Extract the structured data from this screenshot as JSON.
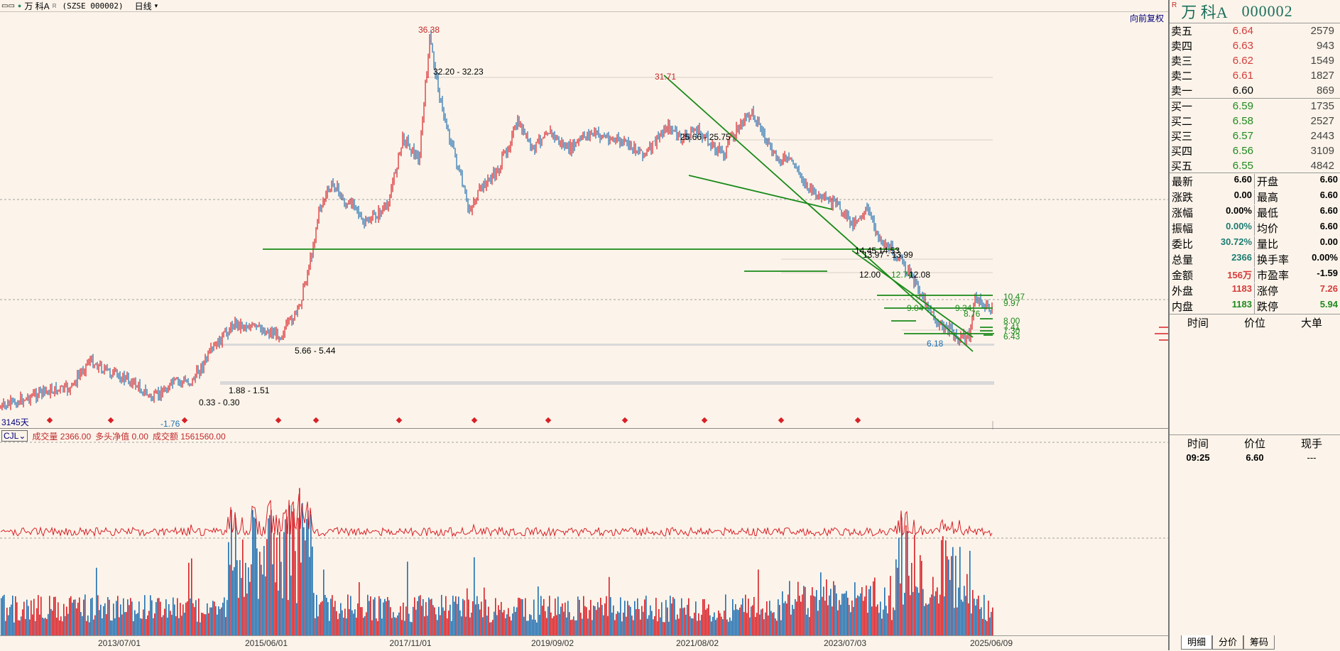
{
  "topbar": {
    "name": "万 科A",
    "mark": "R",
    "code": "(SZSE 000002)",
    "period": "日线",
    "fq_button": "向前复权"
  },
  "chart_main": {
    "days_label": "3145天",
    "annotations": {
      "high": "36.38",
      "high_zone": "32.20 - 32.23",
      "peak2": "31.71",
      "zone_25": "25.66 - 25.75",
      "zone_14a": "14.45",
      "zone_14b": "14.53",
      "zone_13": "13.97 - 13.99",
      "zone_12a": "12.00",
      "zone_12b": "12.08",
      "zone_12c": "12.74",
      "lvl_1047": "10.47",
      "lvl_997": "9.97",
      "lvl_934": "9.34",
      "lvl_904": "9.04",
      "lvl_876": "8.76",
      "lvl_800": "8.00",
      "lvl_741": "7.41",
      "lvl_730": "7.30",
      "lvl_643": "6.43",
      "low_recent": "6.18",
      "zone_566": "5.66 - 5.44",
      "zone_188": "1.88 - 1.51",
      "zone_033": "0.33 - 0.30",
      "low_all": "-1.76"
    }
  },
  "chart_volume": {
    "indicator": "CJL",
    "vol_label": "成交量",
    "vol_value": "2366.00",
    "net_label": "多头净值",
    "net_value": "0.00",
    "amount_label": "成交额",
    "amount_value": "1561560.00"
  },
  "xaxis": {
    "dates": [
      "2013/07/01",
      "2015/06/01",
      "2017/11/01",
      "2019/09/02",
      "2021/08/02",
      "2023/07/03",
      "2025/06/09"
    ]
  },
  "side": {
    "badge": "R",
    "name": "万 科A",
    "code": "000002",
    "asks": [
      {
        "label": "卖五",
        "price": "6.64",
        "vol": "2579"
      },
      {
        "label": "卖四",
        "price": "6.63",
        "vol": "943"
      },
      {
        "label": "卖三",
        "price": "6.62",
        "vol": "1549"
      },
      {
        "label": "卖二",
        "price": "6.61",
        "vol": "1827"
      },
      {
        "label": "卖一",
        "price": "6.60",
        "vol": "869"
      }
    ],
    "bids": [
      {
        "label": "买一",
        "price": "6.59",
        "vol": "1735"
      },
      {
        "label": "买二",
        "price": "6.58",
        "vol": "2527"
      },
      {
        "label": "买三",
        "price": "6.57",
        "vol": "2443"
      },
      {
        "label": "买四",
        "price": "6.56",
        "vol": "3109"
      },
      {
        "label": "买五",
        "price": "6.55",
        "vol": "4842"
      }
    ],
    "stats": [
      [
        {
          "k": "最新",
          "v": "6.60"
        },
        {
          "k": "开盘",
          "v": "6.60"
        }
      ],
      [
        {
          "k": "涨跌",
          "v": "0.00"
        },
        {
          "k": "最高",
          "v": "6.60"
        }
      ],
      [
        {
          "k": "涨幅",
          "v": "0.00%"
        },
        {
          "k": "最低",
          "v": "6.60"
        }
      ],
      [
        {
          "k": "振幅",
          "v": "0.00%"
        },
        {
          "k": "均价",
          "v": "6.60"
        }
      ],
      [
        {
          "k": "委比",
          "v": "30.72%"
        },
        {
          "k": "量比",
          "v": "0.00"
        }
      ],
      [
        {
          "k": "总量",
          "v": "2366"
        },
        {
          "k": "换手率",
          "v": "0.00%"
        }
      ],
      [
        {
          "k": "金额",
          "v": "156万"
        },
        {
          "k": "市盈率",
          "v": "-1.59"
        }
      ],
      [
        {
          "k": "外盘",
          "v": "1183"
        },
        {
          "k": "涨停",
          "v": "7.26"
        }
      ],
      [
        {
          "k": "内盘",
          "v": "1183"
        },
        {
          "k": "跌停",
          "v": "5.94"
        }
      ]
    ],
    "trade_head": [
      "时间",
      "价位",
      "大单"
    ],
    "tick_head": [
      "时间",
      "价位",
      "现手"
    ],
    "tick_row": {
      "time": "09:25",
      "price": "6.60",
      "hand": "---"
    },
    "tabs": [
      "明细",
      "分价",
      "筹码"
    ]
  },
  "colors": {
    "background": "#fcf4ea",
    "up_candle": "#d91f26",
    "down_candle": "#1f6fb0",
    "trend_line": "#1a8a1a",
    "vol_line": "#d91f26"
  }
}
